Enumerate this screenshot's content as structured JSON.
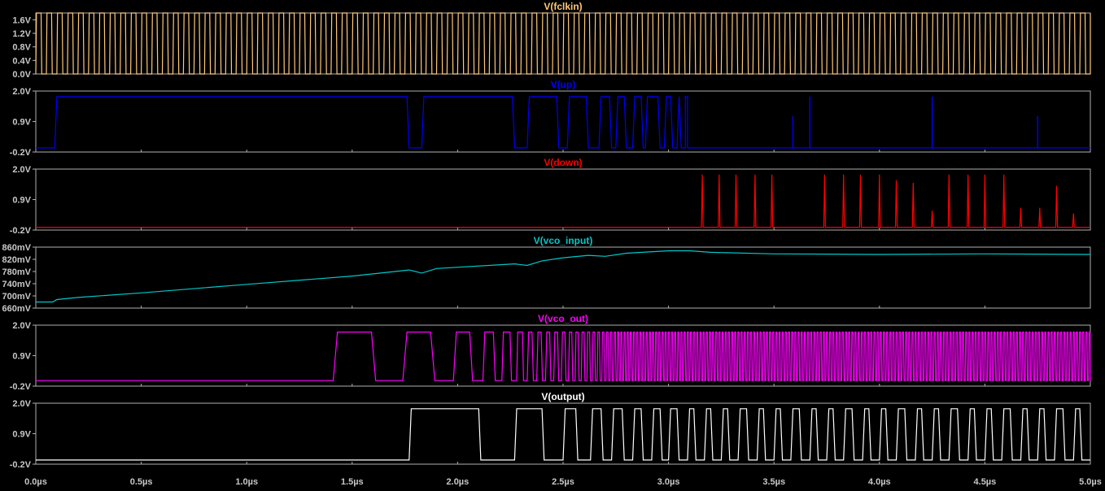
{
  "chart_data": {
    "type": "line",
    "x_axis": {
      "unit": "µs",
      "xlim": [
        0,
        5
      ],
      "tick_labels": [
        "0.0µs",
        "0.5µs",
        "1.0µs",
        "1.5µs",
        "2.0µs",
        "2.5µs",
        "3.0µs",
        "3.5µs",
        "4.0µs",
        "4.5µs",
        "5.0µs"
      ],
      "tick_values": [
        0,
        0.5,
        1,
        1.5,
        2,
        2.5,
        3,
        3.5,
        4,
        4.5,
        5
      ]
    },
    "panes": [
      {
        "title": "V(fclkin)",
        "color": "#ffc878",
        "ylim": [
          0,
          1.8
        ],
        "y_ticks": [
          {
            "v": 0,
            "label": "0.0V"
          },
          {
            "v": 0.4,
            "label": "0.4V"
          },
          {
            "v": 0.8,
            "label": "0.8V"
          },
          {
            "v": 1.2,
            "label": "1.2V"
          },
          {
            "v": 1.6,
            "label": "1.6V"
          }
        ],
        "signal": {
          "kind": "clock",
          "low": 0,
          "high": 1.8,
          "start": 0.0,
          "period": 0.05,
          "duty": 0.5
        }
      },
      {
        "title": "V(up)",
        "color": "#0000ff",
        "ylim": [
          -0.2,
          2.0
        ],
        "y_ticks": [
          {
            "v": -0.2,
            "label": "-0.2V"
          },
          {
            "v": 0.9,
            "label": "0.9V"
          },
          {
            "v": 2.0,
            "label": "2.0V"
          }
        ],
        "signal": {
          "kind": "pulses",
          "low": -0.05,
          "high": 1.8,
          "pulses": [
            [
              0.09,
              1.77
            ],
            [
              1.83,
              2.27
            ],
            [
              2.33,
              2.48
            ],
            [
              2.52,
              2.62
            ],
            [
              2.67,
              2.73
            ],
            [
              2.75,
              2.8
            ],
            [
              2.83,
              2.88
            ],
            [
              2.89,
              2.96
            ],
            [
              2.98,
              3.02
            ],
            [
              3.04,
              3.06
            ],
            [
              3.08,
              3.09
            ]
          ],
          "spikes": [
            [
              3.59,
              1.1
            ],
            [
              3.67,
              1.8
            ],
            [
              4.25,
              1.8
            ],
            [
              4.75,
              1.1
            ]
          ]
        }
      },
      {
        "title": "V(down)",
        "color": "#ff0000",
        "ylim": [
          -0.2,
          2.0
        ],
        "y_ticks": [
          {
            "v": -0.2,
            "label": "-0.2V"
          },
          {
            "v": 0.9,
            "label": "0.9V"
          },
          {
            "v": 2.0,
            "label": "2.0V"
          }
        ],
        "signal": {
          "kind": "spikes",
          "low": -0.1,
          "spikes": [
            [
              3.16,
              1.8
            ],
            [
              3.24,
              1.8
            ],
            [
              3.32,
              1.8
            ],
            [
              3.41,
              1.8
            ],
            [
              3.49,
              1.8
            ],
            [
              3.74,
              1.8
            ],
            [
              3.83,
              1.8
            ],
            [
              3.91,
              1.8
            ],
            [
              4.0,
              1.8
            ],
            [
              4.08,
              1.6
            ],
            [
              4.16,
              1.5
            ],
            [
              4.25,
              0.5
            ],
            [
              4.33,
              1.8
            ],
            [
              4.42,
              1.8
            ],
            [
              4.5,
              1.8
            ],
            [
              4.59,
              1.8
            ],
            [
              4.67,
              0.6
            ],
            [
              4.76,
              0.6
            ],
            [
              4.84,
              1.4
            ],
            [
              4.92,
              0.4
            ]
          ]
        }
      },
      {
        "title": "V(vco_input)",
        "color": "#00c8c8",
        "ylim": [
          660,
          860
        ],
        "y_ticks": [
          {
            "v": 660,
            "label": "660mV"
          },
          {
            "v": 700,
            "label": "700mV"
          },
          {
            "v": 740,
            "label": "740mV"
          },
          {
            "v": 780,
            "label": "780mV"
          },
          {
            "v": 820,
            "label": "820mV"
          },
          {
            "v": 860,
            "label": "860mV"
          }
        ],
        "signal": {
          "kind": "polyline",
          "points": [
            [
              0,
              680
            ],
            [
              0.08,
              680
            ],
            [
              0.1,
              688
            ],
            [
              0.2,
              695
            ],
            [
              0.5,
              710
            ],
            [
              1.0,
              738
            ],
            [
              1.5,
              765
            ],
            [
              1.77,
              785
            ],
            [
              1.83,
              775
            ],
            [
              1.9,
              790
            ],
            [
              2.27,
              805
            ],
            [
              2.33,
              800
            ],
            [
              2.4,
              815
            ],
            [
              2.5,
              825
            ],
            [
              2.62,
              833
            ],
            [
              2.7,
              830
            ],
            [
              2.8,
              840
            ],
            [
              3.0,
              848
            ],
            [
              3.1,
              848
            ],
            [
              3.2,
              843
            ],
            [
              3.5,
              838
            ],
            [
              4.0,
              836
            ],
            [
              4.5,
              838
            ],
            [
              5.0,
              836
            ]
          ]
        }
      },
      {
        "title": "V(vco_out)",
        "color": "#ff00ff",
        "ylim": [
          -0.2,
          2.0
        ],
        "y_ticks": [
          {
            "v": -0.2,
            "label": "-0.2V"
          },
          {
            "v": 0.9,
            "label": "0.9V"
          },
          {
            "v": 2.0,
            "label": "2.0V"
          }
        ],
        "signal": {
          "kind": "chirp",
          "low": 0.0,
          "high": 1.75,
          "start": 1.41,
          "edges_rise": [
            1.41,
            1.74,
            1.98,
            2.12,
            2.21,
            2.28
          ],
          "period_end": 0.015
        }
      },
      {
        "title": "V(output)",
        "color": "#ffffff",
        "ylim": [
          -0.2,
          2.0
        ],
        "y_ticks": [
          {
            "v": -0.2,
            "label": "-0.2V"
          },
          {
            "v": 0.9,
            "label": "0.9V"
          },
          {
            "v": 2.0,
            "label": "2.0V"
          }
        ],
        "signal": {
          "kind": "pulses",
          "low": -0.05,
          "high": 1.8,
          "pulses": [
            [
              1.77,
              2.11
            ],
            [
              2.27,
              2.41
            ],
            [
              2.5,
              2.57
            ],
            [
              2.63,
              2.69
            ],
            [
              2.73,
              2.79
            ],
            [
              2.83,
              2.88
            ],
            [
              2.92,
              2.97
            ],
            [
              3.0,
              3.05
            ],
            [
              3.09,
              3.13
            ],
            [
              3.17,
              3.21
            ],
            [
              3.25,
              3.29
            ],
            [
              3.33,
              3.38
            ],
            [
              3.42,
              3.46
            ],
            [
              3.5,
              3.54
            ],
            [
              3.58,
              3.63
            ],
            [
              3.67,
              3.71
            ],
            [
              3.75,
              3.79
            ],
            [
              3.83,
              3.88
            ],
            [
              3.92,
              3.96
            ],
            [
              4.0,
              4.04
            ],
            [
              4.08,
              4.13
            ],
            [
              4.17,
              4.21
            ],
            [
              4.25,
              4.29
            ],
            [
              4.33,
              4.38
            ],
            [
              4.42,
              4.46
            ],
            [
              4.5,
              4.54
            ],
            [
              4.58,
              4.63
            ],
            [
              4.67,
              4.71
            ],
            [
              4.75,
              4.79
            ],
            [
              4.83,
              4.88
            ],
            [
              4.92,
              4.96
            ]
          ]
        }
      }
    ]
  }
}
